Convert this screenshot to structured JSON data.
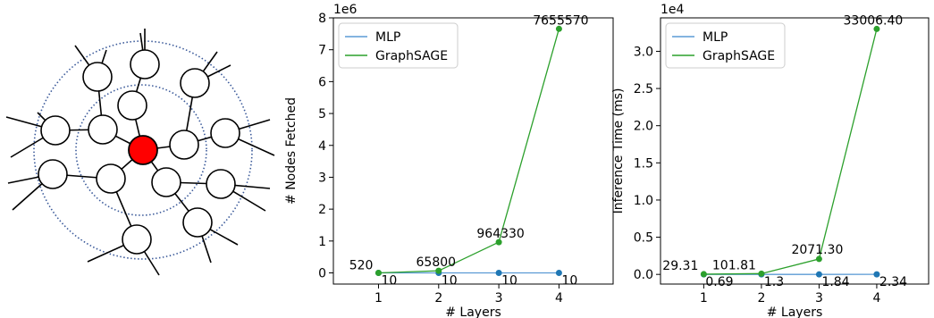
{
  "graph_diagram": {
    "center_color": "#ff0000",
    "node_color": "#ffffff",
    "ring_color": "#3b5a9a"
  },
  "series_colors": {
    "MLP": "#5b9bd5",
    "GraphSAGE": "#2ca02c"
  },
  "marker_color": "#1f77b4",
  "chart_data": [
    {
      "type": "line",
      "xlabel": "# Layers",
      "ylabel": "# Nodes Fetched",
      "scale_label": "1e6",
      "scale": 1000000,
      "x": [
        1,
        2,
        3,
        4
      ],
      "xlim": [
        0.25,
        4.9
      ],
      "ylim": [
        -0.35,
        8.0
      ],
      "yticks": [
        0,
        1,
        2,
        3,
        4,
        5,
        6,
        7,
        8
      ],
      "ytick_labels": [
        "0",
        "1",
        "2",
        "3",
        "4",
        "5",
        "6",
        "7",
        "8"
      ],
      "legend": "top-left",
      "grid": false,
      "series": [
        {
          "name": "MLP",
          "values": [
            10,
            10,
            10,
            10
          ],
          "labels": [
            "10",
            "10",
            "10",
            "10"
          ]
        },
        {
          "name": "GraphSAGE",
          "values": [
            520,
            65800,
            964330,
            7655570
          ],
          "labels": [
            "520",
            "65800",
            "964330",
            "7655570"
          ]
        }
      ]
    },
    {
      "type": "line",
      "xlabel": "# Layers",
      "ylabel": "Inference Time (ms)",
      "scale_label": "1e4",
      "scale": 10000,
      "x": [
        1,
        2,
        3,
        4
      ],
      "xlim": [
        0.25,
        4.9
      ],
      "ylim": [
        -0.13,
        3.45
      ],
      "yticks": [
        0,
        0.5,
        1.0,
        1.5,
        2.0,
        2.5,
        3.0
      ],
      "ytick_labels": [
        "0.0",
        "0.5",
        "1.0",
        "1.5",
        "2.0",
        "2.5",
        "3.0"
      ],
      "legend": "top-left",
      "grid": false,
      "series": [
        {
          "name": "MLP",
          "values": [
            0.69,
            1.3,
            1.84,
            2.34
          ],
          "labels": [
            "0.69",
            "1.3",
            "1.84",
            "2.34"
          ]
        },
        {
          "name": "GraphSAGE",
          "values": [
            29.31,
            101.81,
            2071.3,
            33006.4
          ],
          "labels": [
            "29.31",
            "101.81",
            "2071.30",
            "33006.40"
          ]
        }
      ]
    }
  ]
}
